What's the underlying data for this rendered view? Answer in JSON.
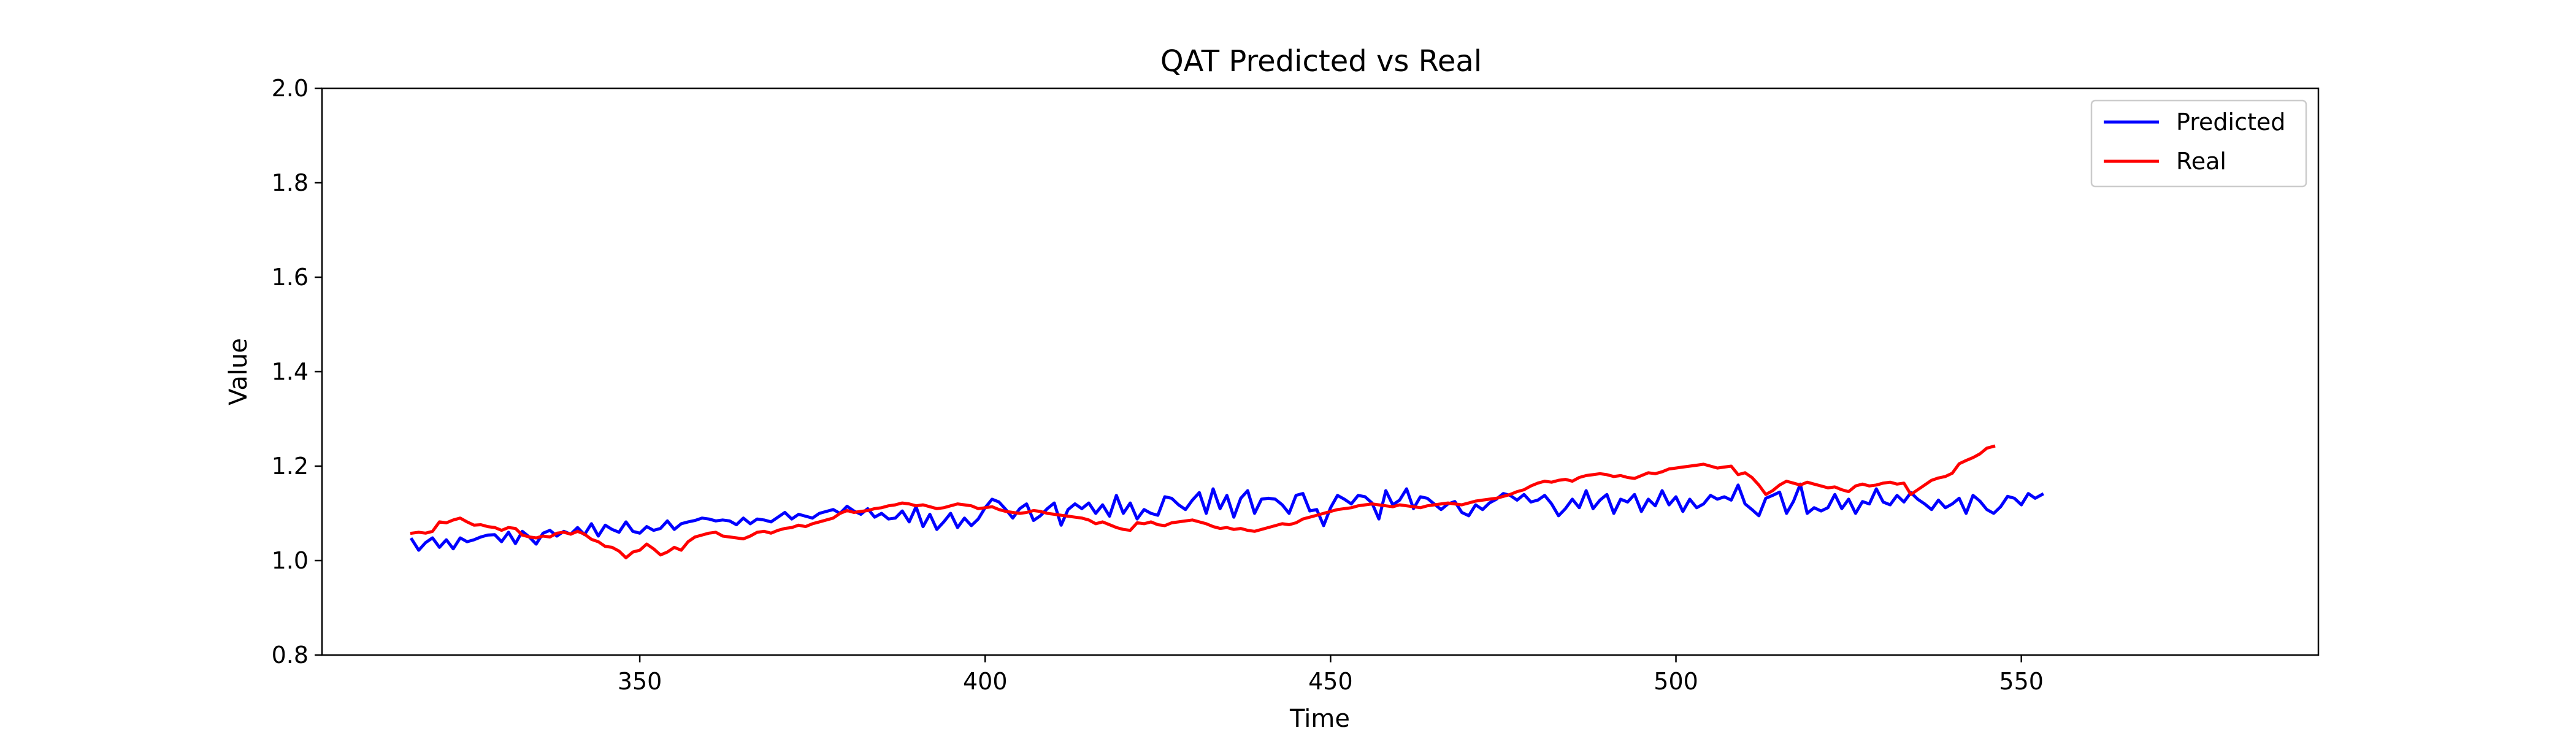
{
  "chart_data": {
    "type": "line",
    "title": "QAT Predicted vs Real",
    "xlabel": "Time",
    "ylabel": "Value",
    "xlim": [
      304,
      593
    ],
    "ylim": [
      0.8,
      2.0
    ],
    "xticks": [
      350,
      400,
      450,
      500,
      550
    ],
    "yticks": [
      0.8,
      1.0,
      1.2,
      1.4,
      1.6,
      1.8,
      2.0
    ],
    "xtick_labels": [
      "350",
      "400",
      "450",
      "500",
      "550"
    ],
    "ytick_labels": [
      "0.8",
      "1.0",
      "1.2",
      "1.4",
      "1.6",
      "1.8",
      "2.0"
    ],
    "grid": false,
    "legend_position": "top-right",
    "x_start": 317,
    "x_step": 1,
    "series": [
      {
        "name": "Predicted",
        "color": "#0000ff",
        "values": [
          1.045,
          1.022,
          1.038,
          1.048,
          1.028,
          1.044,
          1.025,
          1.048,
          1.04,
          1.044,
          1.05,
          1.054,
          1.055,
          1.04,
          1.06,
          1.036,
          1.062,
          1.05,
          1.035,
          1.058,
          1.064,
          1.052,
          1.062,
          1.056,
          1.07,
          1.055,
          1.078,
          1.052,
          1.075,
          1.066,
          1.06,
          1.082,
          1.062,
          1.058,
          1.072,
          1.064,
          1.068,
          1.084,
          1.066,
          1.078,
          1.082,
          1.085,
          1.09,
          1.088,
          1.084,
          1.086,
          1.084,
          1.076,
          1.09,
          1.078,
          1.088,
          1.086,
          1.082,
          1.092,
          1.102,
          1.088,
          1.098,
          1.094,
          1.09,
          1.1,
          1.104,
          1.108,
          1.1,
          1.115,
          1.105,
          1.098,
          1.11,
          1.092,
          1.1,
          1.088,
          1.09,
          1.105,
          1.082,
          1.114,
          1.072,
          1.098,
          1.066,
          1.082,
          1.1,
          1.07,
          1.09,
          1.074,
          1.088,
          1.112,
          1.13,
          1.124,
          1.108,
          1.09,
          1.11,
          1.12,
          1.085,
          1.095,
          1.11,
          1.122,
          1.075,
          1.108,
          1.12,
          1.11,
          1.122,
          1.1,
          1.118,
          1.094,
          1.138,
          1.1,
          1.122,
          1.088,
          1.108,
          1.1,
          1.096,
          1.135,
          1.132,
          1.118,
          1.108,
          1.128,
          1.144,
          1.1,
          1.152,
          1.11,
          1.138,
          1.092,
          1.132,
          1.148,
          1.1,
          1.13,
          1.132,
          1.13,
          1.118,
          1.1,
          1.138,
          1.142,
          1.105,
          1.108,
          1.074,
          1.112,
          1.138,
          1.13,
          1.12,
          1.138,
          1.135,
          1.122,
          1.088,
          1.148,
          1.118,
          1.128,
          1.152,
          1.11,
          1.135,
          1.132,
          1.12,
          1.108,
          1.12,
          1.125,
          1.102,
          1.095,
          1.118,
          1.108,
          1.122,
          1.13,
          1.142,
          1.138,
          1.128,
          1.14,
          1.124,
          1.128,
          1.138,
          1.12,
          1.095,
          1.11,
          1.13,
          1.112,
          1.148,
          1.11,
          1.128,
          1.14,
          1.1,
          1.13,
          1.124,
          1.14,
          1.104,
          1.13,
          1.116,
          1.148,
          1.118,
          1.135,
          1.104,
          1.13,
          1.112,
          1.12,
          1.138,
          1.13,
          1.135,
          1.128,
          1.16,
          1.12,
          1.108,
          1.095,
          1.132,
          1.138,
          1.145,
          1.1,
          1.125,
          1.162,
          1.1,
          1.112,
          1.105,
          1.112,
          1.14,
          1.11,
          1.13,
          1.1,
          1.125,
          1.12,
          1.152,
          1.124,
          1.118,
          1.138,
          1.124,
          1.144,
          1.13,
          1.12,
          1.108,
          1.128,
          1.112,
          1.12,
          1.132,
          1.1,
          1.138,
          1.126,
          1.108,
          1.1,
          1.114,
          1.136,
          1.132,
          1.118,
          1.142,
          1.132,
          1.14
        ]
      },
      {
        "name": "Real",
        "color": "#ff0000",
        "values": [
          1.058,
          1.06,
          1.058,
          1.062,
          1.082,
          1.08,
          1.086,
          1.09,
          1.082,
          1.075,
          1.076,
          1.072,
          1.07,
          1.064,
          1.07,
          1.068,
          1.054,
          1.05,
          1.048,
          1.052,
          1.05,
          1.058,
          1.06,
          1.056,
          1.062,
          1.056,
          1.045,
          1.04,
          1.03,
          1.028,
          1.02,
          1.006,
          1.018,
          1.022,
          1.035,
          1.025,
          1.012,
          1.018,
          1.028,
          1.022,
          1.04,
          1.05,
          1.054,
          1.058,
          1.06,
          1.052,
          1.05,
          1.048,
          1.046,
          1.052,
          1.06,
          1.062,
          1.058,
          1.064,
          1.068,
          1.07,
          1.075,
          1.072,
          1.078,
          1.082,
          1.086,
          1.09,
          1.1,
          1.106,
          1.102,
          1.104,
          1.106,
          1.11,
          1.112,
          1.116,
          1.118,
          1.122,
          1.12,
          1.116,
          1.118,
          1.114,
          1.11,
          1.112,
          1.116,
          1.12,
          1.118,
          1.116,
          1.11,
          1.112,
          1.114,
          1.108,
          1.104,
          1.102,
          1.1,
          1.102,
          1.106,
          1.104,
          1.1,
          1.098,
          1.096,
          1.094,
          1.092,
          1.09,
          1.086,
          1.078,
          1.082,
          1.076,
          1.07,
          1.066,
          1.064,
          1.08,
          1.078,
          1.082,
          1.076,
          1.074,
          1.08,
          1.082,
          1.084,
          1.086,
          1.082,
          1.078,
          1.072,
          1.068,
          1.07,
          1.066,
          1.068,
          1.064,
          1.062,
          1.066,
          1.07,
          1.074,
          1.078,
          1.076,
          1.08,
          1.088,
          1.092,
          1.096,
          1.1,
          1.104,
          1.108,
          1.11,
          1.112,
          1.116,
          1.118,
          1.12,
          1.118,
          1.116,
          1.114,
          1.118,
          1.116,
          1.114,
          1.112,
          1.116,
          1.118,
          1.12,
          1.122,
          1.12,
          1.118,
          1.122,
          1.126,
          1.128,
          1.13,
          1.132,
          1.136,
          1.14,
          1.146,
          1.15,
          1.158,
          1.164,
          1.168,
          1.166,
          1.17,
          1.172,
          1.168,
          1.176,
          1.18,
          1.182,
          1.184,
          1.182,
          1.178,
          1.18,
          1.176,
          1.174,
          1.18,
          1.186,
          1.184,
          1.188,
          1.194,
          1.196,
          1.198,
          1.2,
          1.202,
          1.204,
          1.2,
          1.196,
          1.198,
          1.2,
          1.182,
          1.186,
          1.176,
          1.16,
          1.14,
          1.148,
          1.16,
          1.168,
          1.164,
          1.16,
          1.166,
          1.162,
          1.158,
          1.154,
          1.156,
          1.15,
          1.146,
          1.158,
          1.162,
          1.158,
          1.16,
          1.164,
          1.166,
          1.162,
          1.164,
          1.14,
          1.15,
          1.16,
          1.17,
          1.175,
          1.178,
          1.185,
          1.205,
          1.212,
          1.218,
          1.226,
          1.238,
          1.242
        ]
      }
    ]
  }
}
